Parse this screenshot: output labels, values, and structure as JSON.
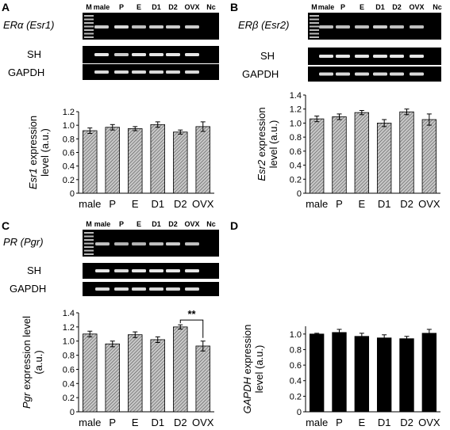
{
  "panels": [
    {
      "letter": "A",
      "lanes": [
        "M",
        "male",
        "P",
        "E",
        "D1",
        "D2",
        "OVX",
        "Nc"
      ],
      "gel_rows": [
        {
          "label": "ERα (Esr1)",
          "italic": true,
          "band_intensity": [
            0.8,
            0.85,
            0.75,
            0.8,
            0.8,
            0.8,
            0
          ]
        },
        {
          "label": "SH",
          "italic": false,
          "band_intensity": [
            0.9,
            0.8,
            0.9,
            0.9,
            0.9,
            0.9,
            0
          ]
        },
        {
          "label": "GAPDH",
          "italic": false,
          "band_intensity": [
            0.85,
            0.85,
            0.85,
            0.85,
            0.85,
            0.85,
            0
          ]
        }
      ],
      "ylabel_lines": [
        [
          {
            "t": "Esr1",
            "i": true
          },
          {
            "t": " expression",
            "i": false
          }
        ],
        [
          {
            "t": "level (a.u.)",
            "i": false
          }
        ]
      ]
    },
    {
      "letter": "B",
      "lanes": [
        "M",
        "male",
        "P",
        "E",
        "D1",
        "D2",
        "OVX",
        "Nc"
      ],
      "gel_rows": [
        {
          "label": "ERβ (Esr2)",
          "italic": true,
          "band_intensity": [
            0.75,
            0.75,
            0.75,
            0.8,
            0.75,
            0.75,
            0
          ]
        },
        {
          "label": "SH",
          "italic": false,
          "band_intensity": [
            0.9,
            0.9,
            0.9,
            0.9,
            0.9,
            0.9,
            0
          ]
        },
        {
          "label": "GAPDH",
          "italic": false,
          "band_intensity": [
            0.85,
            0.85,
            0.85,
            0.85,
            0.85,
            0.85,
            0
          ]
        }
      ],
      "ylabel_lines": [
        [
          {
            "t": "Esr2",
            "i": true
          },
          {
            "t": " expression",
            "i": false
          }
        ],
        [
          {
            "t": "level (a.u.)",
            "i": false
          }
        ]
      ]
    },
    {
      "letter": "C",
      "lanes": [
        "M",
        "male",
        "P",
        "E",
        "D1",
        "D2",
        "OVX",
        "Nc"
      ],
      "gel_rows": [
        {
          "label": "PR (Pgr)",
          "italic": true,
          "band_intensity": [
            0.75,
            0.7,
            0.7,
            0.75,
            0.8,
            0.75,
            0
          ]
        },
        {
          "label": "SH",
          "italic": false,
          "band_intensity": [
            0.9,
            0.85,
            0.9,
            0.9,
            0.9,
            0.9,
            0
          ]
        },
        {
          "label": "GAPDH",
          "italic": false,
          "band_intensity": [
            0.85,
            0.85,
            0.85,
            0.85,
            0.85,
            0.85,
            0
          ]
        }
      ],
      "ylabel_lines": [
        [
          {
            "t": "Pgr",
            "i": true
          },
          {
            "t": " expression level",
            "i": false
          }
        ],
        [
          {
            "t": "(a.u.)",
            "i": false
          }
        ]
      ],
      "significance": {
        "label": "**",
        "between": [
          "D2",
          "OVX"
        ]
      }
    },
    {
      "letter": "D",
      "ylabel_lines": [
        [
          {
            "t": "GAPDH",
            "i": true
          },
          {
            "t": " expression",
            "i": false
          }
        ],
        [
          {
            "t": "level (a.u.)",
            "i": false
          }
        ]
      ]
    }
  ],
  "chart_data": [
    {
      "type": "bar",
      "panel": "A",
      "categories": [
        "male",
        "P",
        "E",
        "D1",
        "D2",
        "OVX"
      ],
      "values": [
        0.92,
        0.97,
        0.95,
        1.01,
        0.9,
        0.98
      ],
      "errors": [
        0.04,
        0.04,
        0.03,
        0.04,
        0.03,
        0.07
      ],
      "ylim": [
        0,
        1.2
      ],
      "yticks": [
        "0",
        "0.2",
        "0.4",
        "0.6",
        "0.8",
        "1.0",
        "1.2"
      ],
      "ylabel": "Esr1 expression level (a.u.)",
      "fill": "hatched-gray"
    },
    {
      "type": "bar",
      "panel": "B",
      "categories": [
        "male",
        "P",
        "E",
        "D1",
        "D2",
        "OVX"
      ],
      "values": [
        1.06,
        1.09,
        1.15,
        1.0,
        1.16,
        1.05
      ],
      "errors": [
        0.04,
        0.04,
        0.03,
        0.05,
        0.04,
        0.08
      ],
      "ylim": [
        0,
        1.4
      ],
      "yticks": [
        "0",
        "0.2",
        "0.4",
        "0.6",
        "0.8",
        "1.0",
        "1.2",
        "1.4"
      ],
      "ylabel": "Esr2 expression level (a.u.)",
      "fill": "hatched-gray"
    },
    {
      "type": "bar",
      "panel": "C",
      "categories": [
        "male",
        "P",
        "E",
        "D1",
        "D2",
        "OVX"
      ],
      "values": [
        1.1,
        0.96,
        1.09,
        1.02,
        1.2,
        0.93
      ],
      "errors": [
        0.04,
        0.04,
        0.04,
        0.04,
        0.03,
        0.07
      ],
      "ylim": [
        0,
        1.4
      ],
      "yticks": [
        "0",
        "0.2",
        "0.4",
        "0.6",
        "0.8",
        "1.0",
        "1.2",
        "1.4"
      ],
      "ylabel": "Pgr expression level (a.u.)",
      "fill": "hatched-gray"
    },
    {
      "type": "bar",
      "panel": "D",
      "categories": [
        "male",
        "P",
        "E",
        "D1",
        "D2",
        "OVX"
      ],
      "values": [
        1.0,
        1.02,
        0.97,
        0.95,
        0.94,
        1.01
      ],
      "errors": [
        0.01,
        0.04,
        0.04,
        0.04,
        0.03,
        0.05
      ],
      "ylim": [
        0,
        1.1
      ],
      "yticks": [
        "0",
        "0.2",
        "0.4",
        "0.6",
        "0.8",
        "1.0"
      ],
      "ylabel": "GAPDH expression level (a.u.)",
      "fill": "black"
    }
  ]
}
